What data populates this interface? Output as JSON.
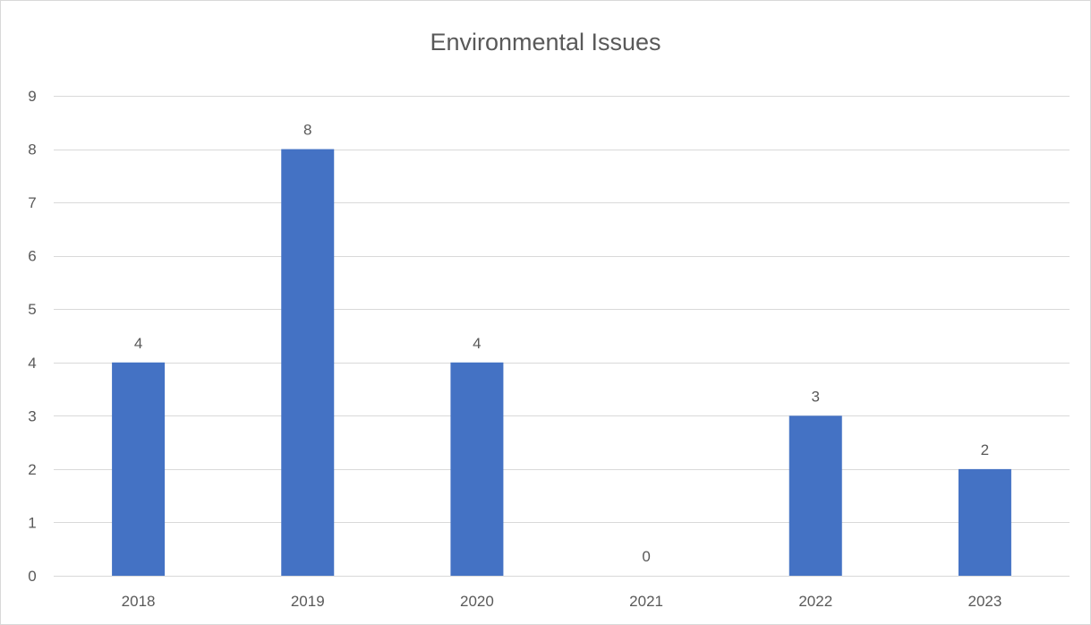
{
  "chart_data": {
    "type": "bar",
    "title": "Environmental Issues",
    "categories": [
      "2018",
      "2019",
      "2020",
      "2021",
      "2022",
      "2023"
    ],
    "values": [
      4,
      8,
      4,
      0,
      3,
      2
    ],
    "data_labels": [
      "4",
      "8",
      "4",
      "0",
      "3",
      "2"
    ],
    "xlabel": "",
    "ylabel": "",
    "ylim": [
      0,
      9
    ],
    "yticks": [
      0,
      1,
      2,
      3,
      4,
      5,
      6,
      7,
      8,
      9
    ],
    "grid": true,
    "legend": "none",
    "bar_color": "#4472c4",
    "gridline_color": "#d9d9d9",
    "text_color": "#595959"
  }
}
